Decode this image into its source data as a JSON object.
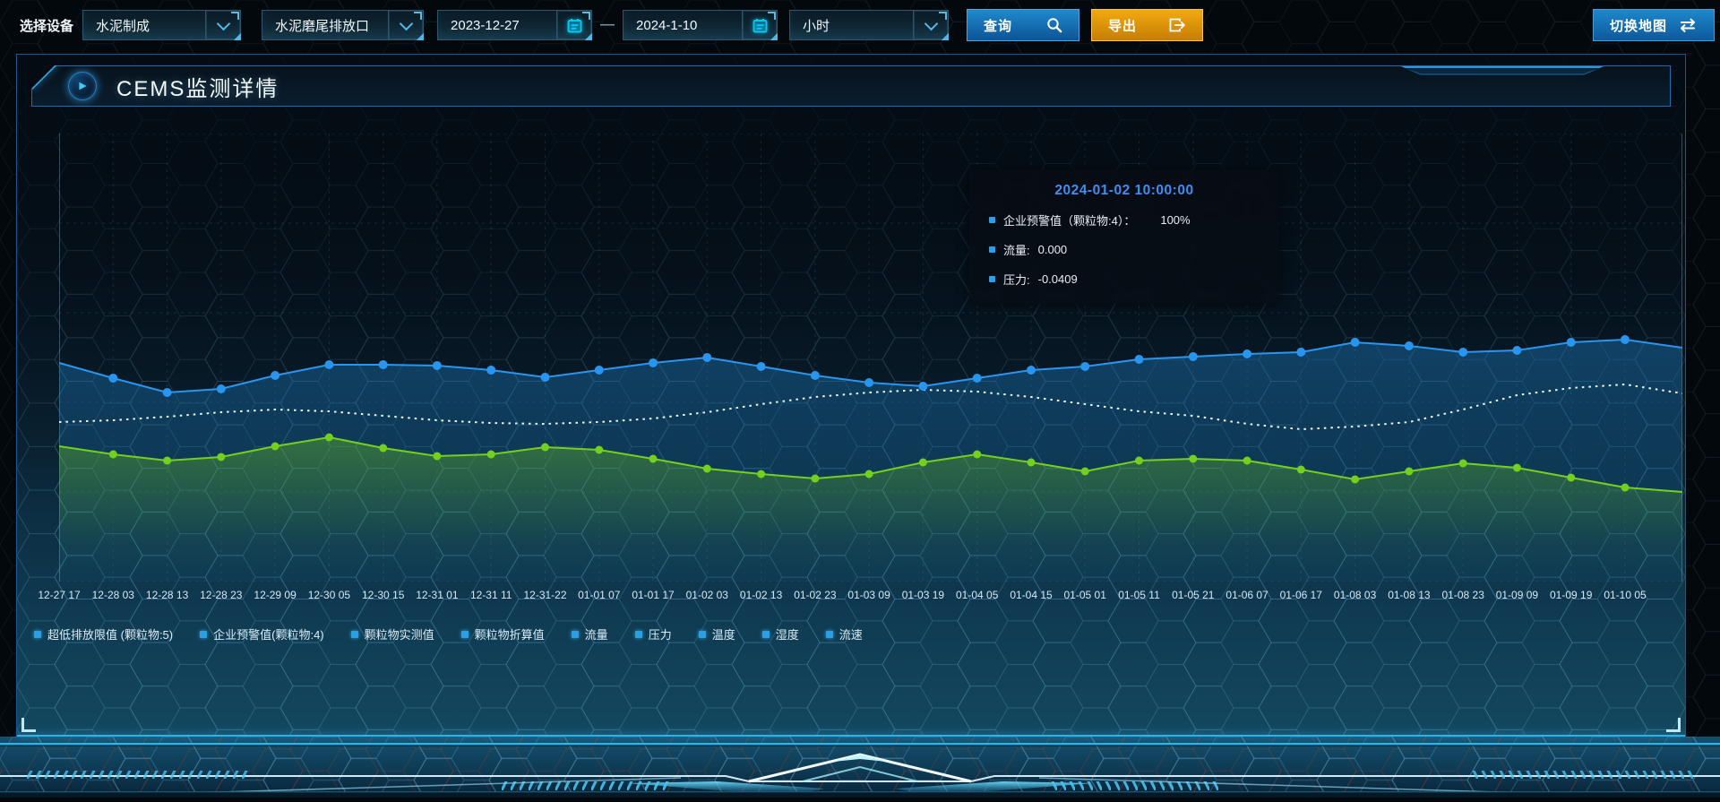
{
  "toolbar": {
    "device_label": "选择设备",
    "device_value": "水泥制成",
    "outlet_value": "水泥磨尾排放口",
    "date_start": "2023-12-27",
    "date_separator": "—",
    "date_end": "2024-1-10",
    "interval_value": "小时",
    "query_label": "查询",
    "export_label": "导出",
    "switch_map_label": "切换地图"
  },
  "panel": {
    "title": "CEMS监测详情"
  },
  "tooltip": {
    "title": "2024-01-02 10:00:00",
    "rows": [
      {
        "label": "企业预警值（颗粒物:4）：",
        "value": "100%"
      },
      {
        "label": "流量:",
        "value": "0.000"
      },
      {
        "label": "压力:",
        "value": "-0.0409"
      }
    ]
  },
  "chart_data": {
    "type": "line",
    "title": "CEMS监测详情",
    "x_labels": [
      "12-27 17",
      "12-28 03",
      "12-28 13",
      "12-28 23",
      "12-29 09",
      "12-30 05",
      "12-30 15",
      "12-31 01",
      "12-31 11",
      "12-31-22",
      "01-01 07",
      "01-01 17",
      "01-02 03",
      "01-02 13",
      "01-02 23",
      "01-03 09",
      "01-03 19",
      "01-04 05",
      "01-04 15",
      "01-05 01",
      "01-05 11",
      "01-05 21",
      "01-06 07",
      "01-06 17",
      "01-08 03",
      "01-08 13",
      "01-08 23",
      "01-09 09",
      "01-09 19",
      "01-10 05"
    ],
    "xlabel": "",
    "ylabel": "",
    "ylim": [
      0,
      100
    ],
    "grid": true,
    "legend_position": "bottom",
    "note": "y-axis has no tick labels; series values estimated as percent of plot height",
    "series": [
      {
        "name": "企业预警值(颗粒物:4)",
        "color": "#2896f0",
        "line": "solid",
        "symbol": "circle",
        "area": true,
        "dot_r": 5,
        "values": [
          48.8,
          45.4,
          42.2,
          43,
          46,
          48.4,
          48.4,
          48.2,
          47.2,
          45.6,
          47.2,
          48.8,
          50,
          48,
          46,
          44.4,
          43.6,
          45.4,
          47.2,
          48,
          49.6,
          50.2,
          50.8,
          51.2,
          53.4,
          52.6,
          51.2,
          51.6,
          53.4,
          54
        ],
        "edge_value": 52.2
      },
      {
        "name": "压力",
        "color": "#eef6fa",
        "line": "dotted",
        "symbol": "none",
        "area": false,
        "dot_r": 0,
        "values": [
          35.6,
          36,
          36.8,
          37.8,
          38.4,
          38,
          37,
          36,
          35.4,
          35.2,
          35.6,
          36.4,
          37.8,
          39.6,
          41.2,
          42.2,
          42.8,
          42.4,
          41.2,
          39.6,
          38,
          37,
          35.2,
          34,
          34.6,
          35.6,
          38.4,
          41.6,
          43.2,
          44
        ],
        "edge_value": 42
      },
      {
        "name": "流量",
        "color": "#74d01e",
        "line": "solid",
        "symbol": "circle",
        "area": true,
        "dot_r": 4.5,
        "values": [
          30.2,
          28.4,
          27,
          27.8,
          30.2,
          32.2,
          29.8,
          28,
          28.4,
          30,
          29.4,
          27.4,
          25.2,
          24,
          23,
          24,
          26.6,
          28.4,
          26.6,
          24.6,
          27,
          27.4,
          27,
          25,
          22.8,
          24.6,
          26.4,
          25.4,
          23.2,
          21
        ],
        "edge_value": 20
      }
    ],
    "legend": [
      "超低排放限值 (颗粒物:5)",
      "企业预警值(颗粒物:4)",
      "颗粒物实测值",
      "颗粒物折算值",
      "流量",
      "压力",
      "温度",
      "湿度",
      "流速"
    ]
  },
  "colors": {
    "accent_blue": "#2896f0",
    "accent_green": "#74d01e",
    "dotted_white": "#eef6fa",
    "button_blue": "#1473b4",
    "button_orange": "#e8990c",
    "tooltip_title": "#3f8ef2",
    "legend_marker": "#2d9fe0",
    "panel_border": "#155a94"
  }
}
